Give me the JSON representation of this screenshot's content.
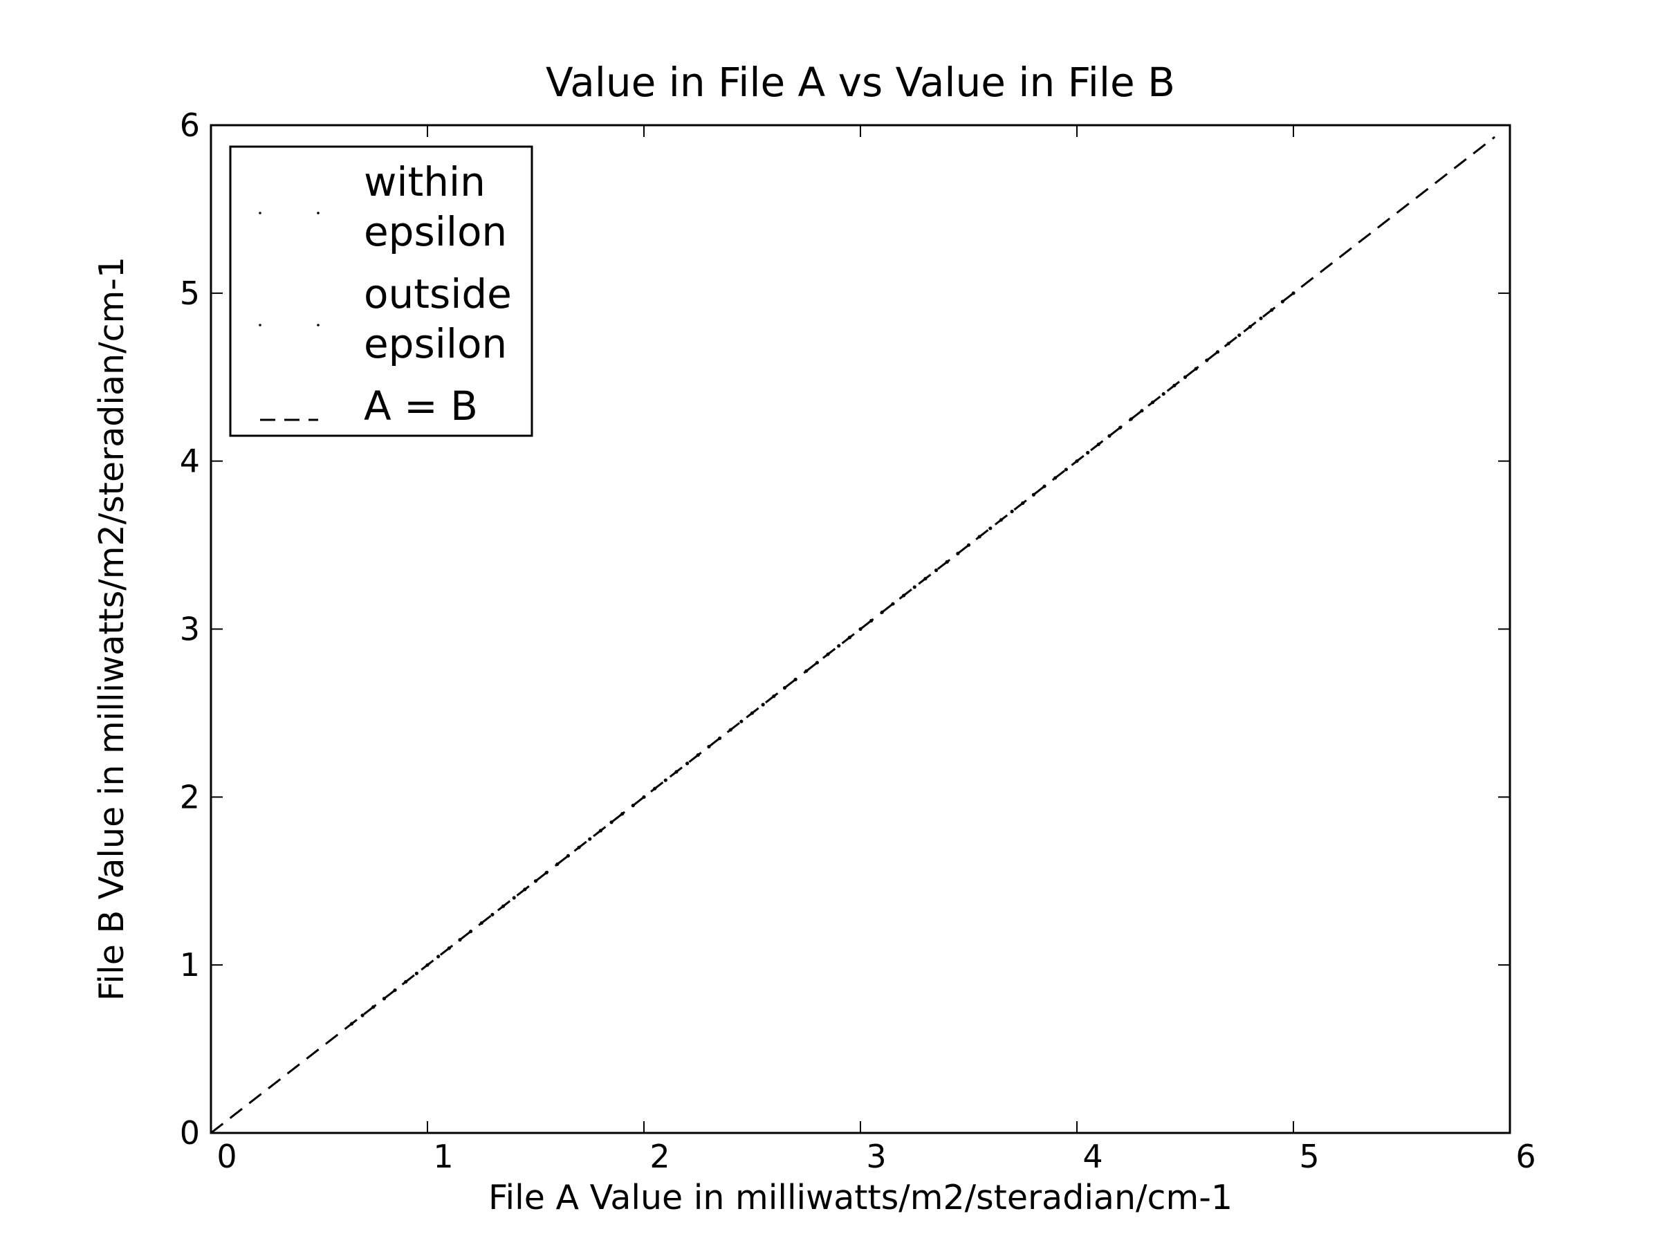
{
  "chart_data": {
    "type": "scatter",
    "title": "Value in File A vs Value in File B",
    "xlabel": "File A Value in milliwatts/m2/steradian/cm-1",
    "ylabel": "File B Value in milliwatts/m2/steradian/cm-1",
    "xlim": [
      0,
      6
    ],
    "ylim": [
      0,
      6
    ],
    "xticks": [
      0,
      1,
      2,
      3,
      4,
      5,
      6
    ],
    "yticks": [
      0,
      1,
      2,
      3,
      4,
      5,
      6
    ],
    "legend": "upper left",
    "series": [
      {
        "name": "within\nepsilon",
        "color": "#000000",
        "marker": "point",
        "x": [
          0.65,
          0.7,
          0.75,
          0.8,
          0.85,
          0.9,
          0.95,
          1.0,
          1.05,
          1.1,
          1.15,
          1.2,
          1.25,
          1.3,
          1.35,
          1.4,
          1.45,
          1.5,
          1.55,
          1.6,
          1.65,
          1.7,
          1.75,
          1.8,
          1.85,
          1.9,
          1.95,
          2.0,
          2.05,
          2.1,
          2.15,
          2.2,
          2.25,
          2.3,
          2.35,
          2.4,
          2.45,
          2.5,
          2.55,
          2.6,
          2.65,
          2.7,
          2.75,
          2.8,
          2.85,
          2.9,
          2.95,
          3.0,
          3.05,
          3.1,
          3.15,
          3.2,
          3.25,
          3.3,
          3.35,
          3.4,
          3.45,
          3.5,
          3.55,
          3.6,
          3.65,
          3.7,
          3.75,
          3.8,
          3.85,
          3.9,
          3.95,
          4.0,
          4.05,
          4.1,
          4.15,
          4.2,
          4.25,
          4.3,
          4.35,
          4.4,
          4.45,
          4.5,
          4.55,
          4.6,
          4.65,
          4.7,
          4.75,
          4.8,
          4.85,
          4.9,
          4.95,
          5.0
        ],
        "y": [
          0.65,
          0.7,
          0.75,
          0.8,
          0.85,
          0.9,
          0.95,
          1.0,
          1.05,
          1.1,
          1.15,
          1.2,
          1.25,
          1.3,
          1.35,
          1.4,
          1.45,
          1.5,
          1.55,
          1.6,
          1.65,
          1.7,
          1.75,
          1.8,
          1.85,
          1.9,
          1.95,
          2.0,
          2.05,
          2.1,
          2.15,
          2.2,
          2.25,
          2.3,
          2.35,
          2.4,
          2.45,
          2.5,
          2.55,
          2.6,
          2.65,
          2.7,
          2.75,
          2.8,
          2.85,
          2.9,
          2.95,
          3.0,
          3.05,
          3.1,
          3.15,
          3.2,
          3.25,
          3.3,
          3.35,
          3.4,
          3.45,
          3.5,
          3.55,
          3.6,
          3.65,
          3.7,
          3.75,
          3.8,
          3.85,
          3.9,
          3.95,
          4.0,
          4.05,
          4.1,
          4.15,
          4.2,
          4.25,
          4.3,
          4.35,
          4.4,
          4.45,
          4.5,
          4.55,
          4.6,
          4.65,
          4.7,
          4.75,
          4.8,
          4.85,
          4.9,
          4.95,
          5.0
        ]
      },
      {
        "name": "outside\nepsilon",
        "color": "#000000",
        "marker": "point",
        "x": [],
        "y": []
      },
      {
        "name": "A = B",
        "color": "#000000",
        "marker": "dashed-line",
        "x": [
          0,
          5.93
        ],
        "y": [
          0,
          5.93
        ]
      }
    ]
  }
}
